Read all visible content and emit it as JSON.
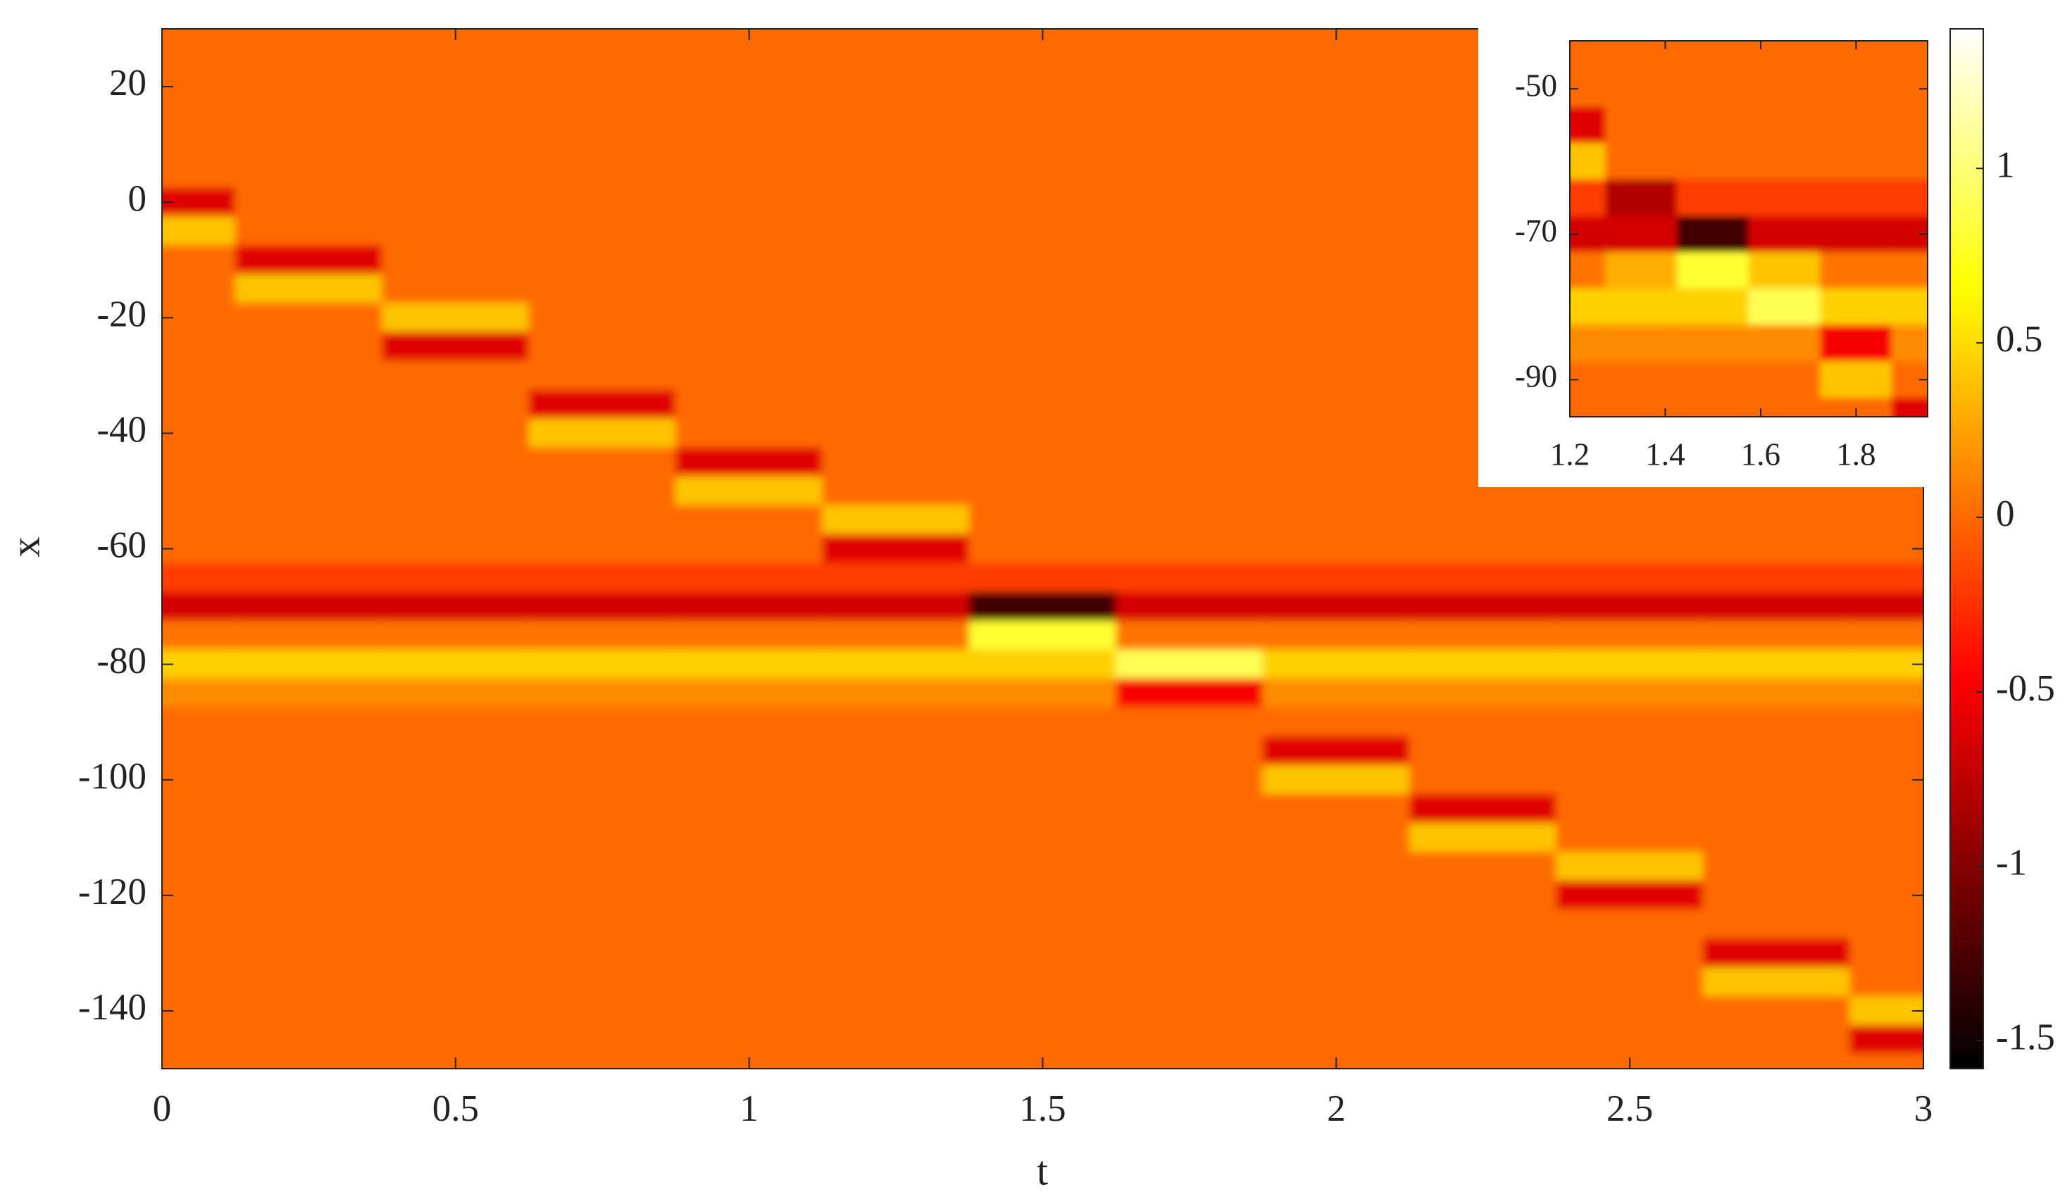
{
  "chart_data": [
    {
      "type": "heatmap",
      "xlabel": "t",
      "ylabel": "x",
      "colormap": "hot",
      "x": [
        0,
        0.25,
        0.5,
        0.75,
        1,
        1.25,
        1.5,
        1.75,
        2,
        2.25,
        2.5,
        2.75,
        3
      ],
      "y": [
        30,
        25,
        20,
        15,
        10,
        5,
        0,
        -5,
        -10,
        -15,
        -20,
        -25,
        -30,
        -35,
        -40,
        -45,
        -50,
        -55,
        -60,
        -65,
        -70,
        -75,
        -80,
        -85,
        -90,
        -95,
        -100,
        -105,
        -110,
        -115,
        -120,
        -125,
        -130,
        -135,
        -140,
        -145,
        -150
      ],
      "z": [
        [
          0,
          0,
          0,
          0,
          0,
          0,
          0,
          0,
          0,
          0,
          0,
          0,
          0
        ],
        [
          0,
          0,
          0,
          0,
          0,
          0,
          0,
          0,
          0,
          0,
          0,
          0,
          0
        ],
        [
          0,
          0,
          0,
          0,
          0,
          0,
          0,
          0,
          0,
          0,
          0,
          0,
          0
        ],
        [
          0,
          0,
          0,
          0,
          0,
          0,
          0,
          0,
          0,
          0,
          0,
          0,
          0
        ],
        [
          0,
          0,
          0,
          0,
          0,
          0,
          0,
          0,
          0,
          0,
          0,
          0,
          0
        ],
        [
          0,
          0,
          0,
          0,
          0,
          0,
          0,
          0,
          0,
          0,
          0,
          0,
          0
        ],
        [
          -0.6,
          0,
          0,
          0,
          0,
          0,
          0,
          0,
          0,
          0,
          0,
          0,
          0
        ],
        [
          0.4,
          0,
          0,
          0,
          0,
          0,
          0,
          0,
          0,
          0,
          0,
          0,
          0
        ],
        [
          0,
          -0.6,
          0,
          0,
          0,
          0,
          0,
          0,
          0,
          0,
          0,
          0,
          0
        ],
        [
          0,
          0.4,
          0,
          0,
          0,
          0,
          0,
          0,
          0,
          0,
          0,
          0,
          0
        ],
        [
          0,
          0,
          0.4,
          0,
          0,
          0,
          0,
          0,
          0,
          0,
          0,
          0,
          0
        ],
        [
          0,
          0,
          -0.6,
          0,
          0,
          0,
          0,
          0,
          0,
          0,
          0,
          0,
          0
        ],
        [
          0,
          0,
          0,
          0,
          0,
          0,
          0,
          0,
          0,
          0,
          0,
          0,
          0
        ],
        [
          0,
          0,
          0,
          -0.6,
          0,
          0,
          0,
          0,
          0,
          0,
          0,
          0,
          0
        ],
        [
          0,
          0,
          0,
          0.4,
          0,
          0,
          0,
          0,
          0,
          0,
          0,
          0,
          0
        ],
        [
          0,
          0,
          0,
          0,
          -0.6,
          0,
          0,
          0,
          0,
          0,
          0,
          0,
          0
        ],
        [
          0,
          0,
          0,
          0,
          0.4,
          0,
          0,
          0,
          0,
          0,
          0,
          0,
          0
        ],
        [
          0,
          0,
          0,
          0,
          0,
          0.4,
          0,
          0,
          0,
          0,
          0,
          0,
          0
        ],
        [
          0,
          0,
          0,
          0,
          0,
          -0.6,
          0,
          0,
          0,
          0,
          0,
          0,
          0
        ],
        [
          -0.2,
          -0.2,
          -0.2,
          -0.2,
          -0.2,
          -0.2,
          -0.2,
          -0.2,
          -0.2,
          -0.2,
          -0.2,
          -0.2,
          -0.2
        ],
        [
          -0.65,
          -0.65,
          -0.65,
          -0.65,
          -0.65,
          -0.65,
          -1.3,
          -0.65,
          -0.65,
          -0.65,
          -0.65,
          -0.65,
          -0.65
        ],
        [
          0.05,
          0.05,
          0.05,
          0.05,
          0.05,
          0.05,
          0.8,
          0.05,
          0.05,
          0.05,
          0.05,
          0.05,
          0.05
        ],
        [
          0.45,
          0.45,
          0.45,
          0.45,
          0.45,
          0.45,
          0.45,
          0.9,
          0.45,
          0.45,
          0.45,
          0.45,
          0.45
        ],
        [
          0.15,
          0.15,
          0.15,
          0.15,
          0.15,
          0.15,
          0.15,
          -0.5,
          0.15,
          0.15,
          0.15,
          0.15,
          0.15
        ],
        [
          0,
          0,
          0,
          0,
          0,
          0,
          0,
          0,
          0,
          0,
          0,
          0,
          0
        ],
        [
          0,
          0,
          0,
          0,
          0,
          0,
          0,
          0,
          -0.6,
          0,
          0,
          0,
          0
        ],
        [
          0,
          0,
          0,
          0,
          0,
          0,
          0,
          0,
          0.4,
          0,
          0,
          0,
          0
        ],
        [
          0,
          0,
          0,
          0,
          0,
          0,
          0,
          0,
          0,
          -0.6,
          0,
          0,
          0
        ],
        [
          0,
          0,
          0,
          0,
          0,
          0,
          0,
          0,
          0,
          0.4,
          0,
          0,
          0
        ],
        [
          0,
          0,
          0,
          0,
          0,
          0,
          0,
          0,
          0,
          0,
          0.4,
          0,
          0
        ],
        [
          0,
          0,
          0,
          0,
          0,
          0,
          0,
          0,
          0,
          0,
          -0.6,
          0,
          0
        ],
        [
          0,
          0,
          0,
          0,
          0,
          0,
          0,
          0,
          0,
          0,
          0,
          0,
          0
        ],
        [
          0,
          0,
          0,
          0,
          0,
          0,
          0,
          0,
          0,
          0,
          0,
          -0.6,
          0
        ],
        [
          0,
          0,
          0,
          0,
          0,
          0,
          0,
          0,
          0,
          0,
          0,
          0.4,
          0
        ],
        [
          0,
          0,
          0,
          0,
          0,
          0,
          0,
          0,
          0,
          0,
          0,
          0,
          0.4
        ],
        [
          0,
          0,
          0,
          0,
          0,
          0,
          0,
          0,
          0,
          0,
          0,
          0,
          -0.6
        ],
        [
          0,
          0,
          0,
          0,
          0,
          0,
          0,
          0,
          0,
          0,
          0,
          0,
          0
        ]
      ],
      "xlim": [
        0,
        3
      ],
      "ylim": [
        -150,
        30
      ],
      "xticks": [
        0,
        0.5,
        1,
        1.5,
        2,
        2.5,
        3
      ],
      "yticks": [
        20,
        0,
        -20,
        -40,
        -60,
        -80,
        -100,
        -120,
        -140
      ],
      "clim": [
        -1.58,
        1.4
      ],
      "cticks": [
        -1.5,
        -1,
        -0.5,
        0,
        0.5,
        1
      ]
    },
    {
      "type": "heatmap",
      "x": [
        1.2,
        1.35,
        1.5,
        1.65,
        1.8,
        1.95
      ],
      "y": [
        -45,
        -50,
        -55,
        -60,
        -65,
        -70,
        -75,
        -80,
        -85,
        -90,
        -95
      ],
      "z": [
        [
          0,
          0,
          0,
          0,
          0,
          0
        ],
        [
          0,
          0,
          0,
          0,
          0,
          0
        ],
        [
          -0.6,
          0,
          0,
          0,
          0,
          0
        ],
        [
          0.4,
          0,
          0,
          0,
          0,
          0
        ],
        [
          -0.2,
          -0.8,
          -0.2,
          -0.2,
          -0.2,
          -0.2
        ],
        [
          -0.65,
          -0.65,
          -1.3,
          -0.65,
          -0.65,
          -0.65
        ],
        [
          0.05,
          0.3,
          0.8,
          0.4,
          0.05,
          0.05
        ],
        [
          0.45,
          0.45,
          0.45,
          0.9,
          0.45,
          0.45
        ],
        [
          0.15,
          0.15,
          0.15,
          0.15,
          -0.5,
          0.15
        ],
        [
          0,
          0,
          0,
          0,
          0.4,
          0
        ],
        [
          0,
          0,
          0,
          0,
          0,
          -0.6
        ]
      ],
      "xlim": [
        1.2,
        1.95
      ],
      "ylim": [
        -95.1,
        -43.4
      ],
      "xticks": [
        1.2,
        1.4,
        1.6,
        1.8
      ],
      "yticks": [
        -50,
        -70,
        -90
      ]
    }
  ]
}
